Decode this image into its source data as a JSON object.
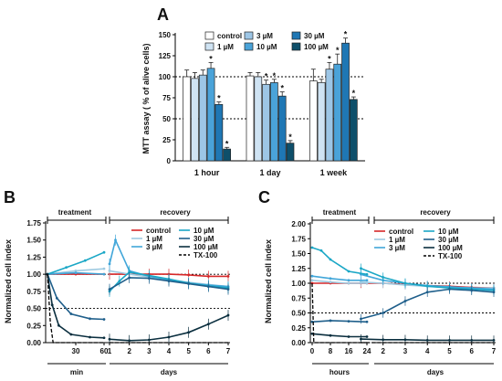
{
  "chart_data": [
    {
      "panel": "A",
      "type": "bar",
      "ylabel": "MTT assay ( % of alive cells)",
      "ylim": [
        0,
        150
      ],
      "yticks": [
        0,
        25,
        50,
        75,
        100,
        125,
        150
      ],
      "reference_lines": [
        100,
        50
      ],
      "categories": [
        "1 hour",
        "1 day",
        "1 week"
      ],
      "series": [
        {
          "name": "control",
          "color": "#ffffff",
          "values": [
            100,
            101,
            95
          ],
          "errors": [
            8,
            4,
            14
          ],
          "sig": [
            false,
            false,
            false
          ]
        },
        {
          "name": "1 µM",
          "color": "#cfe3f3",
          "values": [
            98,
            100,
            93
          ],
          "errors": [
            7,
            5,
            4
          ],
          "sig": [
            false,
            false,
            false
          ]
        },
        {
          "name": "3 µM",
          "color": "#9dc6e6",
          "values": [
            102,
            91,
            109
          ],
          "errors": [
            6,
            5,
            8
          ],
          "sig": [
            false,
            true,
            true
          ]
        },
        {
          "name": "10 µM",
          "color": "#4aa3d9",
          "values": [
            110,
            93,
            115
          ],
          "errors": [
            7,
            4,
            12
          ],
          "sig": [
            true,
            true,
            true
          ]
        },
        {
          "name": "30 µM",
          "color": "#1f77b4",
          "values": [
            67,
            77,
            140
          ],
          "errors": [
            3,
            5,
            6
          ],
          "sig": [
            true,
            true,
            true
          ]
        },
        {
          "name": "100 µM",
          "color": "#0e4f6a",
          "values": [
            14,
            21,
            73
          ],
          "errors": [
            2,
            3,
            3
          ],
          "sig": [
            true,
            true,
            true
          ]
        }
      ]
    },
    {
      "panel": "B",
      "type": "line",
      "ylabel": "Normalized cell index",
      "ylim": [
        0,
        1.75
      ],
      "yticks": [
        "0.00",
        "0.25",
        "0.50",
        "0.75",
        "1.00",
        "1.25",
        "1.50",
        "1.75"
      ],
      "reference_lines": [
        1.0,
        0.5
      ],
      "phases": {
        "treatment": "treatment",
        "recovery": "recovery"
      },
      "x_treatment": {
        "unit": "min",
        "ticks": [
          "30",
          "60"
        ]
      },
      "x_recovery": {
        "unit": "days",
        "ticks": [
          "1",
          "2",
          "3",
          "4",
          "5",
          "6",
          "7"
        ]
      },
      "series": [
        {
          "name": "control",
          "color": "#d62728",
          "treatment": [
            [
              0,
              1.0
            ],
            [
              30,
              1.0
            ],
            [
              60,
              1.0
            ]
          ],
          "recovery": [
            [
              1,
              1.0
            ],
            [
              2,
              1.0
            ],
            [
              3,
              1.0
            ],
            [
              4,
              1.0
            ],
            [
              5,
              0.99
            ],
            [
              6,
              0.97
            ],
            [
              7,
              0.97
            ]
          ]
        },
        {
          "name": "1 µM",
          "color": "#9ecae1",
          "treatment": [
            [
              0,
              1.0
            ],
            [
              30,
              1.05
            ],
            [
              60,
              1.08
            ]
          ],
          "recovery": [
            [
              1,
              1.05
            ],
            [
              2,
              1.0
            ],
            [
              3,
              0.96
            ],
            [
              4,
              0.92
            ],
            [
              5,
              0.88
            ],
            [
              6,
              0.85
            ],
            [
              7,
              0.82
            ]
          ]
        },
        {
          "name": "3 µM",
          "color": "#41a6d9",
          "treatment": [
            [
              0,
              1.0
            ],
            [
              30,
              1.02
            ],
            [
              60,
              1.0
            ]
          ],
          "recovery": [
            [
              1,
              1.15
            ],
            [
              1.3,
              1.5
            ],
            [
              2,
              1.05
            ],
            [
              3,
              0.97
            ],
            [
              4,
              0.92
            ],
            [
              5,
              0.87
            ],
            [
              6,
              0.84
            ],
            [
              7,
              0.82
            ]
          ]
        },
        {
          "name": "10 µM",
          "color": "#1aa7c6",
          "treatment": [
            [
              0,
              1.0
            ],
            [
              20,
              1.1
            ],
            [
              40,
              1.2
            ],
            [
              60,
              1.32
            ]
          ],
          "recovery": [
            [
              1,
              0.75
            ],
            [
              1.5,
              0.9
            ],
            [
              2,
              1.03
            ],
            [
              3,
              0.98
            ],
            [
              4,
              0.93
            ],
            [
              5,
              0.87
            ],
            [
              6,
              0.83
            ],
            [
              7,
              0.8
            ]
          ]
        },
        {
          "name": "30 µM",
          "color": "#1f5f8b",
          "treatment": [
            [
              0,
              1.0
            ],
            [
              10,
              0.65
            ],
            [
              25,
              0.42
            ],
            [
              45,
              0.35
            ],
            [
              60,
              0.34
            ]
          ],
          "recovery": [
            [
              1,
              0.78
            ],
            [
              2,
              0.95
            ],
            [
              3,
              0.94
            ],
            [
              4,
              0.9
            ],
            [
              5,
              0.86
            ],
            [
              6,
              0.82
            ],
            [
              7,
              0.78
            ]
          ]
        },
        {
          "name": "100 µM",
          "color": "#0b2f3f",
          "treatment": [
            [
              0,
              1.0
            ],
            [
              5,
              0.55
            ],
            [
              12,
              0.25
            ],
            [
              25,
              0.12
            ],
            [
              45,
              0.08
            ],
            [
              60,
              0.07
            ]
          ],
          "recovery": [
            [
              1,
              0.05
            ],
            [
              2,
              0.03
            ],
            [
              3,
              0.04
            ],
            [
              4,
              0.08
            ],
            [
              5,
              0.15
            ],
            [
              6,
              0.27
            ],
            [
              7,
              0.4
            ]
          ]
        },
        {
          "name": "TX-100",
          "color": "#000000",
          "dash": true,
          "treatment": [
            [
              0,
              1.0
            ],
            [
              3,
              0.3
            ],
            [
              6,
              0.0
            ],
            [
              60,
              0.0
            ]
          ],
          "recovery": [
            [
              1,
              0.0
            ],
            [
              7,
              0.0
            ]
          ]
        }
      ]
    },
    {
      "panel": "C",
      "type": "line",
      "ylabel": "Normalized cell index",
      "ylim": [
        0,
        2.0
      ],
      "yticks": [
        "0.00",
        "0.25",
        "0.50",
        "0.75",
        "1.00",
        "1.25",
        "1.50",
        "1.75",
        "2.00"
      ],
      "reference_lines": [
        1.0,
        0.5
      ],
      "phases": {
        "treatment": "treatment",
        "recovery": "recovery"
      },
      "x_treatment": {
        "unit": "hours",
        "ticks": [
          "0",
          "8",
          "16",
          "24"
        ]
      },
      "x_recovery": {
        "unit": "days",
        "ticks": [
          "2",
          "3",
          "4",
          "5",
          "6",
          "7"
        ]
      },
      "series": [
        {
          "name": "control",
          "color": "#d62728",
          "treatment": [
            [
              0,
              1.0
            ],
            [
              8,
              1.0
            ],
            [
              16,
              1.0
            ],
            [
              24,
              1.0
            ]
          ],
          "recovery": [
            [
              1,
              1.0
            ],
            [
              2,
              1.0
            ],
            [
              3,
              0.98
            ],
            [
              4,
              0.96
            ],
            [
              5,
              0.95
            ],
            [
              6,
              0.93
            ],
            [
              7,
              0.92
            ]
          ]
        },
        {
          "name": "1 µM",
          "color": "#9ecae1",
          "treatment": [
            [
              0,
              1.05
            ],
            [
              8,
              1.02
            ],
            [
              16,
              1.0
            ],
            [
              24,
              1.0
            ]
          ],
          "recovery": [
            [
              1,
              1.02
            ],
            [
              2,
              1.0
            ],
            [
              3,
              0.97
            ],
            [
              4,
              0.95
            ],
            [
              5,
              0.93
            ],
            [
              6,
              0.92
            ],
            [
              7,
              0.92
            ]
          ]
        },
        {
          "name": "3 µM",
          "color": "#41a6d9",
          "treatment": [
            [
              0,
              1.12
            ],
            [
              8,
              1.08
            ],
            [
              16,
              1.05
            ],
            [
              24,
              1.05
            ]
          ],
          "recovery": [
            [
              1,
              1.15
            ],
            [
              2,
              1.05
            ],
            [
              3,
              1.0
            ],
            [
              4,
              0.96
            ],
            [
              5,
              0.94
            ],
            [
              6,
              0.92
            ],
            [
              7,
              0.9
            ]
          ]
        },
        {
          "name": "10 µM",
          "color": "#1aa7c6",
          "treatment": [
            [
              0,
              1.6
            ],
            [
              4,
              1.55
            ],
            [
              8,
              1.4
            ],
            [
              16,
              1.2
            ],
            [
              24,
              1.15
            ]
          ],
          "recovery": [
            [
              1,
              1.25
            ],
            [
              2,
              1.1
            ],
            [
              3,
              1.0
            ],
            [
              4,
              0.95
            ],
            [
              5,
              0.92
            ],
            [
              6,
              0.9
            ],
            [
              7,
              0.88
            ]
          ]
        },
        {
          "name": "30 µM",
          "color": "#1f5f8b",
          "treatment": [
            [
              0,
              0.35
            ],
            [
              8,
              0.37
            ],
            [
              16,
              0.36
            ],
            [
              24,
              0.35
            ]
          ],
          "recovery": [
            [
              1,
              0.4
            ],
            [
              2,
              0.5
            ],
            [
              3,
              0.7
            ],
            [
              4,
              0.85
            ],
            [
              5,
              0.9
            ],
            [
              6,
              0.88
            ],
            [
              7,
              0.85
            ]
          ]
        },
        {
          "name": "100 µM",
          "color": "#0b2f3f",
          "treatment": [
            [
              0,
              0.15
            ],
            [
              8,
              0.12
            ],
            [
              16,
              0.1
            ],
            [
              24,
              0.1
            ]
          ],
          "recovery": [
            [
              1,
              0.06
            ],
            [
              2,
              0.05
            ],
            [
              3,
              0.05
            ],
            [
              4,
              0.04
            ],
            [
              5,
              0.04
            ],
            [
              6,
              0.04
            ],
            [
              7,
              0.04
            ]
          ]
        },
        {
          "name": "TX-100",
          "color": "#000000",
          "dash": true,
          "treatment": [
            [
              0,
              1.0
            ],
            [
              0.7,
              0.0
            ],
            [
              24,
              0.0
            ]
          ],
          "recovery": [
            [
              1,
              0.0
            ],
            [
              7,
              0.0
            ]
          ]
        }
      ]
    }
  ]
}
